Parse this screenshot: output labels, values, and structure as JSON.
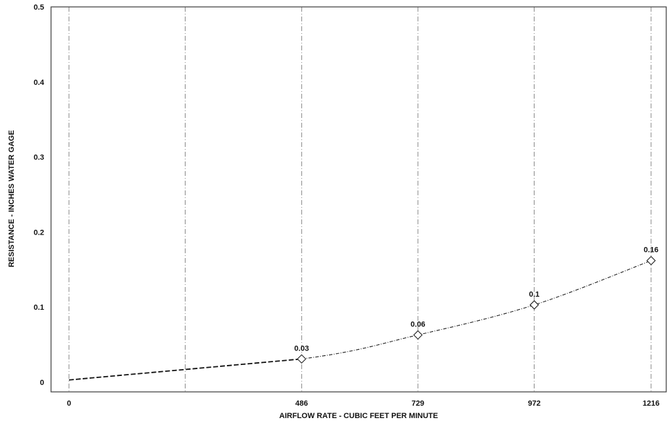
{
  "chart_data": {
    "type": "line",
    "title": "",
    "xlabel": "AIRFLOW RATE - CUBIC FEET PER MINUTE",
    "ylabel": "RESISTANCE - INCHES WATER GAGE",
    "xlim": [
      0,
      1216
    ],
    "ylim": [
      0,
      0.5
    ],
    "x_ticks": [
      0,
      486,
      729,
      972,
      1216
    ],
    "x_tick_labels": [
      "0",
      "486",
      "729",
      "972",
      "1216"
    ],
    "y_ticks": [
      0,
      0.1,
      0.2,
      0.3,
      0.4,
      0.5
    ],
    "y_tick_labels": [
      "0",
      "0.1",
      "0.2",
      "0.3",
      "0.4",
      "0.5"
    ],
    "grid": true,
    "vertical_gridlines": [
      0,
      243,
      486,
      729,
      972,
      1216
    ],
    "series": [
      {
        "x": [
          0,
          486,
          729,
          972,
          1216
        ],
        "y": [
          0.003,
          0.031,
          0.063,
          0.103,
          0.162
        ],
        "data_labels": [
          "",
          "0.03",
          "0.06",
          "0.1",
          "0.16"
        ],
        "marker": "diamond"
      }
    ]
  }
}
